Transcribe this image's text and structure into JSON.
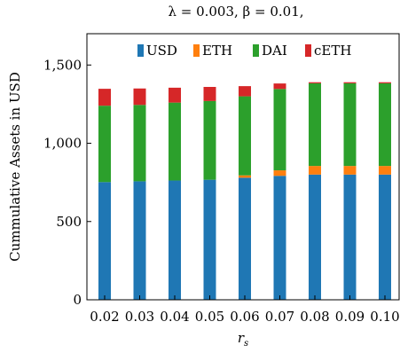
{
  "chart_data": {
    "type": "bar",
    "stacked": true,
    "title": "λ = 0.003, β = 0.01,",
    "xlabel": "r_s",
    "ylabel": "Cummulative Assets in USD",
    "categories": [
      "0.02",
      "0.03",
      "0.04",
      "0.05",
      "0.06",
      "0.07",
      "0.08",
      "0.09",
      "0.10"
    ],
    "ylim": [
      0,
      1700
    ],
    "yticks": [
      0,
      500,
      1000,
      1500
    ],
    "ytick_labels": [
      "0",
      "500",
      "1,000",
      "1,500"
    ],
    "grid": false,
    "legend_position": "top",
    "series": [
      {
        "name": "USD",
        "color": "#1f77b4",
        "values": [
          752,
          757,
          762,
          767,
          780,
          792,
          800,
          800,
          800
        ]
      },
      {
        "name": "ETH",
        "color": "#ff7f0e",
        "values": [
          0,
          0,
          0,
          0,
          15,
          35,
          55,
          55,
          55
        ]
      },
      {
        "name": "DAI",
        "color": "#2ca02c",
        "values": [
          488,
          488,
          498,
          503,
          505,
          520,
          528,
          528,
          528
        ]
      },
      {
        "name": "cETH",
        "color": "#d62728",
        "values": [
          108,
          105,
          95,
          90,
          65,
          35,
          7,
          7,
          7
        ]
      }
    ]
  }
}
